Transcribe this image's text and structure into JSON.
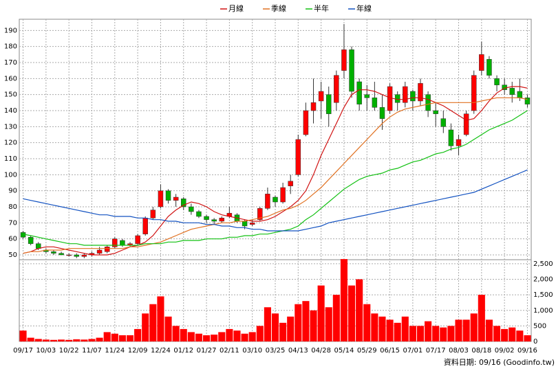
{
  "chart_data": [
    {
      "type": "candlestick",
      "x": [
        "09/17",
        null,
        null,
        "10/03",
        null,
        null,
        "10/22",
        null,
        null,
        "11/07",
        null,
        null,
        "11/24",
        null,
        null,
        "12/09",
        null,
        null,
        "12/24",
        null,
        null,
        "01/12",
        null,
        null,
        "01/27",
        null,
        null,
        "02/11",
        null,
        null,
        "03/10",
        null,
        null,
        "03/25",
        null,
        null,
        "04/13",
        null,
        null,
        "04/28",
        null,
        null,
        "05/14",
        null,
        null,
        "05/29",
        null,
        null,
        "06/15",
        null,
        null,
        "07/01",
        null,
        null,
        "07/17",
        null,
        null,
        "08/03",
        null,
        null,
        "08/18",
        null,
        null,
        "09/02",
        null,
        null,
        "09/16"
      ],
      "open": [
        64,
        61,
        57,
        53,
        52,
        51,
        50,
        50,
        49,
        50,
        51,
        52,
        55,
        59,
        56,
        57,
        63,
        73,
        80,
        90,
        84,
        85,
        80,
        77,
        74,
        72,
        71,
        74,
        75,
        71,
        69,
        72,
        79,
        86,
        83,
        93,
        100,
        125,
        140,
        146,
        150,
        145,
        165,
        178,
        158,
        150,
        148,
        142,
        140,
        150,
        145,
        152,
        146,
        150,
        140,
        135,
        128,
        118,
        125,
        140,
        165,
        172,
        160,
        156,
        154,
        152,
        148
      ],
      "high": [
        65,
        62,
        58,
        54,
        53,
        52,
        51,
        51,
        51,
        52,
        55,
        56,
        61,
        60,
        58,
        63,
        74,
        80,
        94,
        91,
        88,
        86,
        82,
        78,
        75,
        73,
        74,
        80,
        76,
        72,
        72,
        80,
        92,
        87,
        95,
        100,
        125,
        145,
        160,
        158,
        155,
        165,
        194,
        180,
        160,
        156,
        158,
        150,
        157,
        152,
        158,
        153,
        160,
        152,
        145,
        140,
        132,
        125,
        140,
        165,
        183,
        174,
        162,
        160,
        158,
        160,
        150
      ],
      "low": [
        60,
        56,
        53,
        51,
        50,
        50,
        49,
        48,
        48,
        49,
        50,
        51,
        54,
        55,
        55,
        56,
        62,
        72,
        79,
        82,
        80,
        78,
        75,
        73,
        70,
        69,
        70,
        73,
        70,
        66,
        68,
        71,
        78,
        80,
        82,
        88,
        99,
        124,
        132,
        135,
        130,
        140,
        160,
        148,
        140,
        140,
        140,
        128,
        138,
        140,
        142,
        140,
        143,
        136,
        130,
        126,
        115,
        112,
        124,
        138,
        162,
        160,
        152,
        150,
        145,
        146,
        142
      ],
      "close": [
        61,
        57,
        54,
        52,
        51,
        50,
        50,
        49,
        50,
        51,
        53,
        55,
        60,
        56,
        57,
        62,
        73,
        78,
        90,
        84,
        86,
        80,
        77,
        74,
        72,
        71,
        73,
        76,
        71,
        68,
        70,
        79,
        88,
        83,
        92,
        96,
        122,
        140,
        145,
        152,
        138,
        162,
        178,
        152,
        144,
        148,
        142,
        135,
        155,
        145,
        155,
        146,
        157,
        140,
        138,
        130,
        118,
        122,
        138,
        162,
        175,
        162,
        156,
        153,
        150,
        148,
        144
      ],
      "up_color": "#ff0000",
      "down_color": "#00b000",
      "series": [
        {
          "name": "月線",
          "color": "#d01010",
          "values": [
            51,
            52,
            54,
            55,
            55,
            54,
            53,
            52,
            51,
            50,
            50,
            50,
            51,
            53,
            55,
            56,
            58,
            62,
            68,
            74,
            78,
            81,
            83,
            82,
            80,
            77,
            75,
            74,
            73,
            72,
            71,
            71,
            72,
            74,
            77,
            80,
            84,
            90,
            100,
            112,
            122,
            132,
            142,
            150,
            153,
            153,
            152,
            150,
            148,
            147,
            147,
            148,
            148,
            147,
            145,
            143,
            140,
            137,
            134,
            135,
            140,
            146,
            151,
            154,
            155,
            155,
            154
          ]
        },
        {
          "name": "季線",
          "color": "#e07020",
          "values": [
            51,
            52,
            52,
            53,
            53,
            53,
            54,
            54,
            54,
            54,
            54,
            54,
            54,
            54,
            55,
            55,
            56,
            57,
            58,
            60,
            62,
            64,
            66,
            67,
            68,
            69,
            70,
            70,
            71,
            71,
            72,
            73,
            74,
            76,
            78,
            79,
            81,
            84,
            88,
            92,
            97,
            102,
            107,
            112,
            117,
            122,
            127,
            132,
            136,
            139,
            141,
            142,
            143,
            144,
            145,
            145,
            145,
            145,
            145,
            145,
            146,
            147,
            148,
            148,
            148,
            148,
            147
          ]
        },
        {
          "name": "半年",
          "color": "#10c010",
          "values": [
            63,
            62,
            61,
            60,
            59,
            58,
            57,
            57,
            56,
            56,
            56,
            56,
            56,
            56,
            56,
            56,
            57,
            57,
            57,
            58,
            58,
            59,
            59,
            59,
            60,
            60,
            60,
            61,
            61,
            62,
            62,
            63,
            63,
            64,
            65,
            66,
            68,
            72,
            75,
            79,
            83,
            87,
            91,
            94,
            97,
            99,
            100,
            101,
            103,
            104,
            106,
            108,
            109,
            111,
            113,
            114,
            116,
            117,
            119,
            122,
            125,
            128,
            130,
            132,
            134,
            137,
            140
          ]
        },
        {
          "name": "年線",
          "color": "#1050c0",
          "values": [
            85,
            84,
            83,
            82,
            81,
            80,
            79,
            78,
            77,
            76,
            75,
            75,
            74,
            74,
            74,
            73,
            73,
            72,
            72,
            71,
            71,
            70,
            70,
            70,
            69,
            69,
            68,
            68,
            67,
            67,
            66,
            66,
            65,
            65,
            65,
            65,
            65,
            66,
            67,
            68,
            70,
            71,
            72,
            73,
            74,
            75,
            76,
            77,
            78,
            79,
            80,
            81,
            82,
            83,
            84,
            85,
            86,
            87,
            88,
            89,
            91,
            93,
            95,
            97,
            99,
            101,
            103
          ]
        }
      ],
      "ylim": [
        47,
        197
      ],
      "yticks": [
        50,
        60,
        70,
        80,
        90,
        100,
        110,
        120,
        130,
        140,
        150,
        160,
        170,
        180,
        190
      ],
      "grid": true,
      "footer": "資料日期: 09/16 (Goodinfo.tw)"
    },
    {
      "type": "bar",
      "values": [
        350,
        120,
        80,
        60,
        50,
        60,
        50,
        70,
        60,
        80,
        120,
        300,
        250,
        200,
        200,
        400,
        900,
        1200,
        1450,
        800,
        500,
        400,
        300,
        250,
        200,
        220,
        300,
        400,
        350,
        250,
        300,
        500,
        1100,
        900,
        600,
        800,
        1200,
        1300,
        1000,
        1800,
        1100,
        1500,
        2650,
        1800,
        2000,
        1200,
        900,
        800,
        700,
        600,
        800,
        500,
        500,
        650,
        500,
        450,
        500,
        700,
        700,
        900,
        1500,
        700,
        500,
        400,
        450,
        350,
        200
      ],
      "color": "#ff0000",
      "y2lim": [
        0,
        2630
      ],
      "y2ticks": [
        0,
        500,
        {
          "value": 1000,
          "label": "1,000"
        },
        {
          "value": 1500,
          "label": "1,500"
        },
        {
          "value": 2000,
          "label": "2,000"
        },
        {
          "value": 2500,
          "label": "2,500"
        }
      ]
    }
  ]
}
